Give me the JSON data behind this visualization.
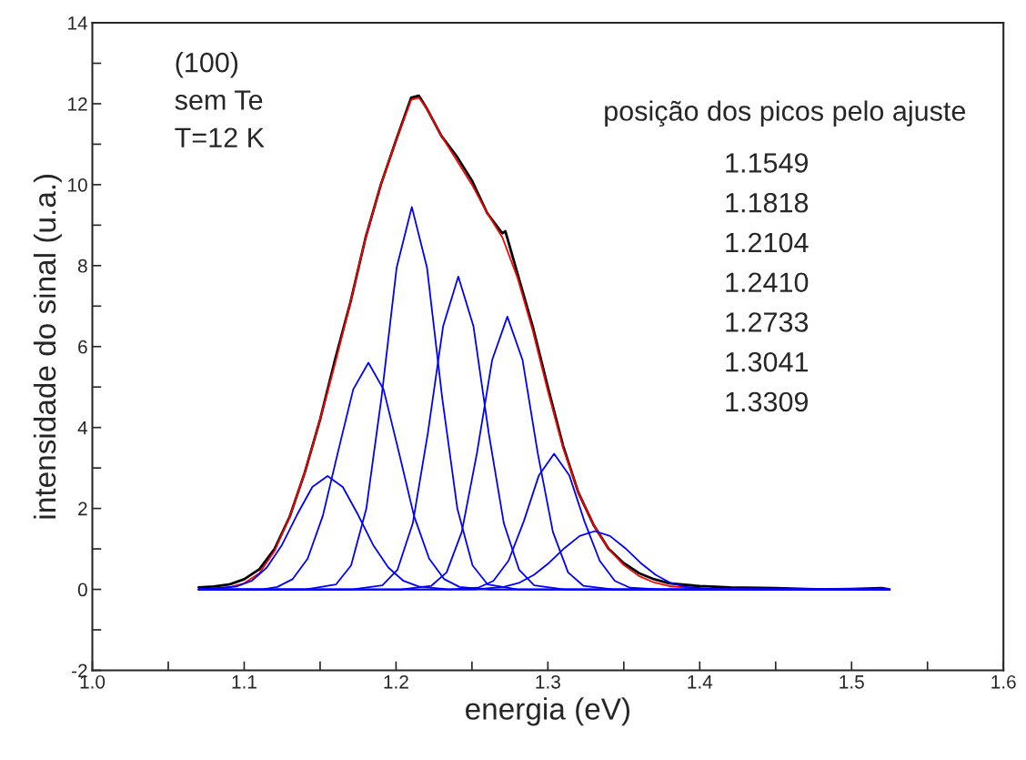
{
  "chart_data": {
    "type": "line",
    "xlabel": "energia (eV)",
    "ylabel": "intensidade do sinal (u.a.)",
    "xlim": [
      1.0,
      1.6
    ],
    "ylim": [
      -2,
      14
    ],
    "xticks": [
      {
        "value": 1.0,
        "label": "1.0"
      },
      {
        "value": 1.05,
        "label": null
      },
      1.1,
      {
        "value": 1.15,
        "label": null
      },
      1.2,
      {
        "value": 1.25,
        "label": null
      },
      1.3,
      {
        "value": 1.35,
        "label": null
      },
      1.4,
      {
        "value": 1.45,
        "label": null
      },
      1.5,
      {
        "value": 1.55,
        "label": null
      },
      1.6
    ],
    "yticks": [
      -2,
      {
        "value": -1,
        "label": null
      },
      0,
      {
        "value": 1,
        "label": null
      },
      2,
      {
        "value": 3,
        "label": null
      },
      4,
      {
        "value": 5,
        "label": null
      },
      6,
      {
        "value": 7,
        "label": null
      },
      8,
      {
        "value": 9,
        "label": null
      },
      10,
      {
        "value": 11,
        "label": null
      },
      12,
      {
        "value": 13,
        "label": null
      },
      14
    ],
    "grid": false,
    "legend": false,
    "marker": "none",
    "line_style": "solid",
    "annotations": [
      "(100)",
      "sem Te",
      "T=12 K",
      "posição dos picos pelo ajuste",
      "1.1549",
      "1.1818",
      "1.2104",
      "1.2410",
      "1.2733",
      "1.3041",
      "1.3309"
    ],
    "series": [
      {
        "color": "#000000",
        "x": [
          1.07,
          1.08,
          1.09,
          1.1,
          1.11,
          1.12,
          1.13,
          1.14,
          1.15,
          1.16,
          1.17,
          1.18,
          1.19,
          1.2,
          1.21,
          1.215,
          1.22,
          1.23,
          1.24,
          1.25,
          1.26,
          1.27,
          1.272,
          1.28,
          1.29,
          1.3,
          1.31,
          1.32,
          1.33,
          1.34,
          1.35,
          1.36,
          1.37,
          1.38,
          1.4,
          1.42,
          1.45,
          1.48,
          1.5,
          1.52,
          1.525
        ],
        "values": [
          0.05,
          0.07,
          0.12,
          0.25,
          0.5,
          1.0,
          1.8,
          2.9,
          4.2,
          5.7,
          7.1,
          8.7,
          10.0,
          11.1,
          12.15,
          12.2,
          11.9,
          11.2,
          10.7,
          10.1,
          9.3,
          8.8,
          8.85,
          7.8,
          6.5,
          5.0,
          3.55,
          2.4,
          1.6,
          1.0,
          0.65,
          0.4,
          0.25,
          0.15,
          0.08,
          0.05,
          0.03,
          0.0,
          0.01,
          0.03,
          0.0
        ]
      },
      {
        "color": "#ff0000",
        "x": [
          1.07,
          1.09,
          1.1,
          1.11,
          1.12,
          1.13,
          1.14,
          1.15,
          1.16,
          1.17,
          1.18,
          1.19,
          1.2,
          1.21,
          1.215,
          1.22,
          1.23,
          1.24,
          1.25,
          1.26,
          1.27,
          1.28,
          1.29,
          1.3,
          1.31,
          1.32,
          1.33,
          1.34,
          1.35,
          1.36,
          1.37,
          1.38,
          1.4,
          1.45,
          1.525
        ],
        "values": [
          0.0,
          0.05,
          0.15,
          0.4,
          0.95,
          1.8,
          2.9,
          4.2,
          5.6,
          7.1,
          8.7,
          10.0,
          11.1,
          12.1,
          12.15,
          11.9,
          11.2,
          10.6,
          10.0,
          9.3,
          8.7,
          7.7,
          6.4,
          4.9,
          3.5,
          2.4,
          1.6,
          1.0,
          0.6,
          0.33,
          0.17,
          0.08,
          0.02,
          0.0,
          0.0
        ]
      },
      {
        "color": "#0000ff",
        "x": [
          1.07,
          1.0949,
          1.1049,
          1.1149,
          1.1249,
          1.1349,
          1.1449,
          1.1549,
          1.1649,
          1.1749,
          1.1849,
          1.1949,
          1.2049,
          1.2149,
          1.2349,
          1.525
        ],
        "values": [
          0.0,
          0.07,
          0.21,
          0.54,
          1.1,
          1.85,
          2.53,
          2.8,
          2.53,
          1.85,
          1.1,
          0.54,
          0.21,
          0.07,
          0.0,
          0.0
        ]
      },
      {
        "color": "#0000ff",
        "x": [
          1.07,
          1.1118,
          1.1218,
          1.1318,
          1.1418,
          1.1518,
          1.1618,
          1.1718,
          1.1818,
          1.1918,
          1.2018,
          1.2118,
          1.2218,
          1.2318,
          1.2418,
          1.2618,
          1.525
        ],
        "values": [
          0.0,
          0.0,
          0.06,
          0.25,
          0.76,
          1.82,
          3.4,
          4.94,
          5.6,
          4.94,
          3.4,
          1.82,
          0.76,
          0.25,
          0.06,
          0.0,
          0.0
        ]
      },
      {
        "color": "#0000ff",
        "x": [
          1.07,
          1.1404,
          1.1604,
          1.1704,
          1.1804,
          1.1904,
          1.2004,
          1.2104,
          1.2204,
          1.2304,
          1.2404,
          1.2504,
          1.2604,
          1.2804,
          1.525
        ],
        "values": [
          0.0,
          0.0,
          0.12,
          0.59,
          1.99,
          4.73,
          7.95,
          9.45,
          7.95,
          4.73,
          1.99,
          0.59,
          0.12,
          0.0,
          0.0
        ]
      },
      {
        "color": "#0000ff",
        "x": [
          1.07,
          1.171,
          1.191,
          1.201,
          1.211,
          1.221,
          1.231,
          1.241,
          1.251,
          1.261,
          1.271,
          1.281,
          1.291,
          1.311,
          1.525
        ],
        "values": [
          0.0,
          0.0,
          0.1,
          0.49,
          1.63,
          3.87,
          6.5,
          7.73,
          6.5,
          3.87,
          1.63,
          0.49,
          0.1,
          0.0,
          0.0
        ]
      },
      {
        "color": "#0000ff",
        "x": [
          1.07,
          1.2033,
          1.2233,
          1.2333,
          1.2433,
          1.2533,
          1.2633,
          1.2733,
          1.2833,
          1.2933,
          1.3033,
          1.3133,
          1.3233,
          1.3433,
          1.525
        ],
        "values": [
          0.0,
          0.0,
          0.09,
          0.42,
          1.42,
          3.37,
          5.67,
          6.74,
          5.67,
          3.37,
          1.42,
          0.42,
          0.09,
          0.0,
          0.0
        ]
      },
      {
        "color": "#0000ff",
        "x": [
          1.07,
          1.2341,
          1.2541,
          1.2641,
          1.2741,
          1.2841,
          1.2941,
          1.3041,
          1.3141,
          1.3241,
          1.3341,
          1.3441,
          1.3541,
          1.3741,
          1.525
        ],
        "values": [
          0.0,
          0.0,
          0.04,
          0.21,
          0.71,
          1.68,
          2.82,
          3.35,
          2.82,
          1.68,
          0.71,
          0.21,
          0.04,
          0.0,
          0.0
        ]
      },
      {
        "color": "#0000ff",
        "x": [
          1.07,
          1.2509,
          1.2709,
          1.2809,
          1.2909,
          1.3009,
          1.3109,
          1.3209,
          1.3309,
          1.3409,
          1.3509,
          1.3609,
          1.3709,
          1.3809,
          1.3909,
          1.4109,
          1.525
        ],
        "values": [
          0.0,
          0.0,
          0.06,
          0.16,
          0.36,
          0.66,
          1.02,
          1.32,
          1.44,
          1.32,
          1.02,
          0.66,
          0.36,
          0.16,
          0.06,
          0.0,
          0.0
        ]
      }
    ]
  }
}
